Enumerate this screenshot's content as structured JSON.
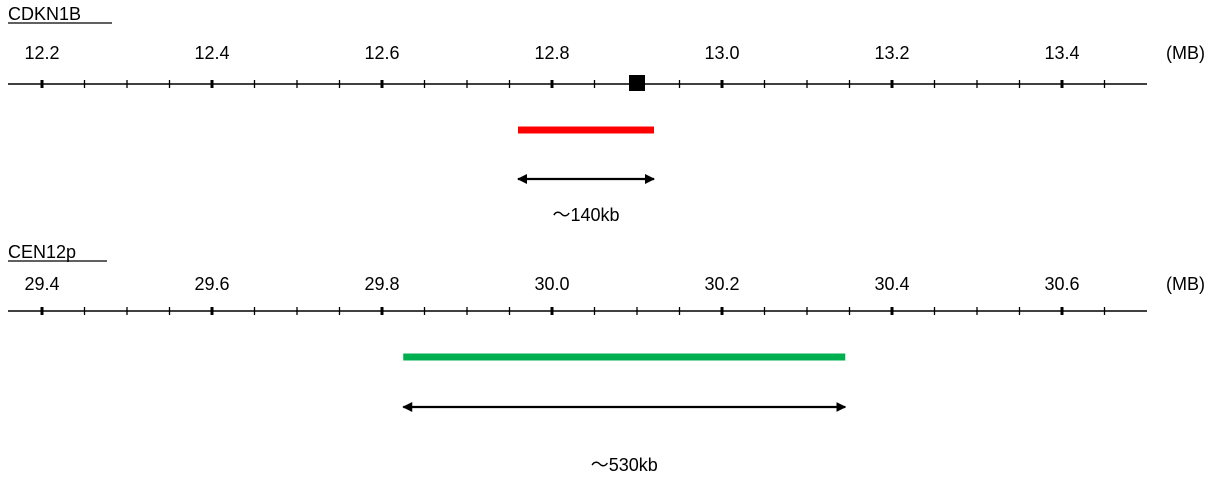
{
  "colors": {
    "axis": "#000000",
    "cdkn1b_probe": "#ff0000",
    "cen12p_probe": "#00b050"
  },
  "panels": [
    {
      "name": "CDKN1B",
      "unit": "(MB)",
      "ticks": [
        "12.2",
        "12.4",
        "12.6",
        "12.8",
        "13.0",
        "13.2",
        "13.4"
      ],
      "axis_start_mb": 12.18,
      "axis_end_mb": 13.49,
      "gene_marker_mb": 12.9,
      "probe": {
        "start_mb": 12.76,
        "end_mb": 12.92,
        "color": "#ff0000"
      },
      "span_label": "～140kb"
    },
    {
      "name": "CEN12p",
      "unit": "(MB)",
      "ticks": [
        "29.4",
        "29.6",
        "29.8",
        "30.0",
        "30.2",
        "30.4",
        "30.6"
      ],
      "axis_start_mb": 29.38,
      "axis_end_mb": 30.69,
      "gene_marker_mb": null,
      "probe": {
        "start_mb": 29.825,
        "end_mb": 30.345,
        "color": "#00b050"
      },
      "span_label": "～530kb"
    }
  ]
}
